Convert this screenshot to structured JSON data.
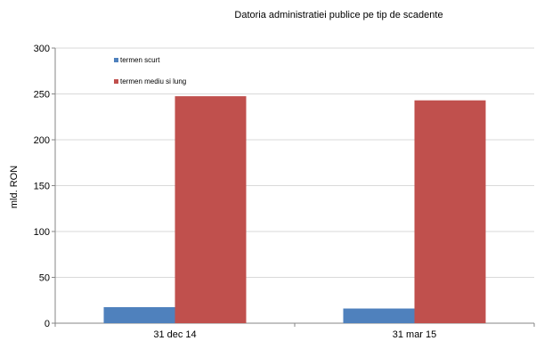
{
  "chart_data": {
    "type": "bar",
    "title": "Datoria administratiei publice  pe tip de scadente",
    "xlabel": "",
    "ylabel": "mld. RON",
    "categories": [
      "31 dec 14",
      "31 mar 15"
    ],
    "series": [
      {
        "name": "termen scurt",
        "values": [
          17.5,
          16.0
        ],
        "color": "#4f81bd"
      },
      {
        "name": "termen mediu si lung",
        "values": [
          247.5,
          243.0
        ],
        "color": "#c0504d"
      }
    ],
    "ylim": [
      0,
      300
    ],
    "yticks": [
      "0",
      "50",
      "100",
      "150",
      "200",
      "250",
      "300"
    ],
    "grid": true,
    "legend": "top-left"
  }
}
